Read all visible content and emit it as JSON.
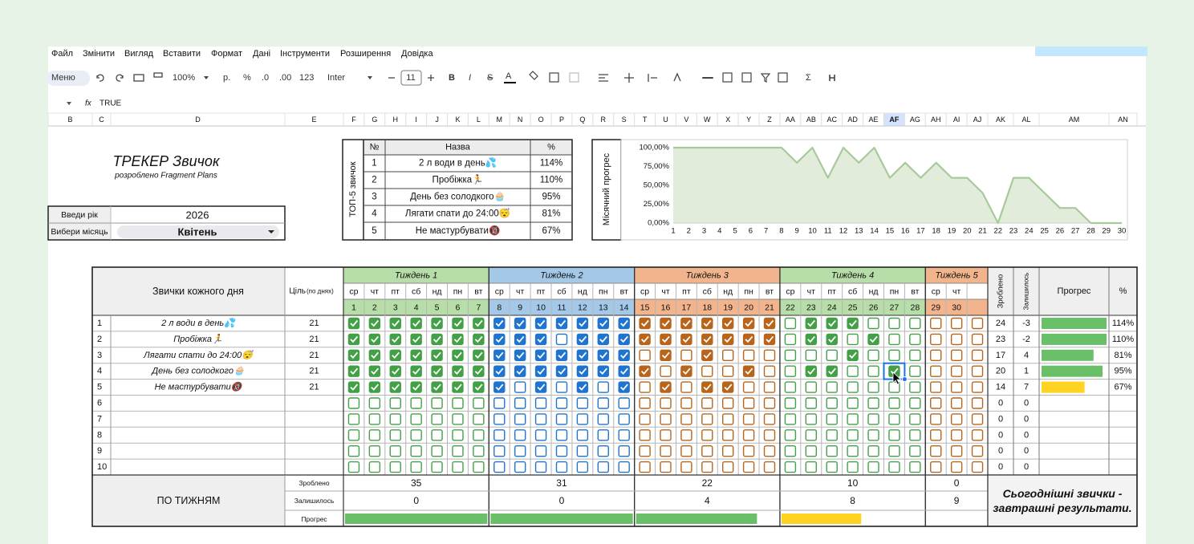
{
  "menu": [
    "Файл",
    "Змінити",
    "Вигляд",
    "Вставити",
    "Формат",
    "Дані",
    "Інструменти",
    "Розширення",
    "Довідка"
  ],
  "toolbar": {
    "menu": "Меню",
    "zoom": "100%",
    "currency": "р.",
    "percent": "%",
    "decrease_decimals": ".0",
    "increase_decimals": ".00",
    "number_format": "123",
    "font": "Inter",
    "font_size": "11",
    "bold": "B",
    "italic": "I",
    "strike": "S",
    "text_color": "A",
    "sum": "Σ"
  },
  "formula": {
    "function_label": "fx",
    "content": "TRUE"
  },
  "columns": [
    "B",
    "C",
    "D",
    "E",
    "F",
    "G",
    "H",
    "I",
    "J",
    "K",
    "L",
    "M",
    "N",
    "O",
    "P",
    "Q",
    "R",
    "S",
    "T",
    "U",
    "V",
    "W",
    "X",
    "Y",
    "Z",
    "AA",
    "AB",
    "AC",
    "AD",
    "AE",
    "AF",
    "AG",
    "AH",
    "AI",
    "AJ",
    "AK",
    "AL",
    "AM",
    "AN"
  ],
  "tracker": {
    "title": "ТРЕКЕР Звичок",
    "subtitle": "розроблено Fragment Plans",
    "year_label": "Введи рік",
    "year": "2026",
    "month_label": "Вибери місяць",
    "month": "Квітень"
  },
  "top5": {
    "side_label": "ТОП-5 звичок",
    "headers": [
      "№",
      "Назва",
      "%"
    ],
    "rows": [
      [
        1,
        "2 л води в день💦",
        "114%"
      ],
      [
        2,
        "Пробіжка🏃",
        "110%"
      ],
      [
        3,
        "День без солодкого🧁",
        "95%"
      ],
      [
        4,
        "Лягати спати до 24:00😴",
        "81%"
      ],
      [
        5,
        "Не мастурбувати🔞",
        "67%"
      ]
    ]
  },
  "chart_data": {
    "type": "line",
    "y_label": "Місячний прогрес",
    "x": [
      1,
      2,
      3,
      4,
      5,
      6,
      7,
      8,
      9,
      10,
      11,
      12,
      13,
      14,
      15,
      16,
      17,
      18,
      19,
      20,
      21,
      22,
      23,
      24,
      25,
      26,
      27,
      28,
      29,
      30
    ],
    "values": [
      100,
      100,
      100,
      100,
      100,
      100,
      100,
      100,
      80,
      100,
      60,
      100,
      80,
      100,
      60,
      80,
      60,
      80,
      60,
      60,
      40,
      0,
      60,
      60,
      40,
      20,
      20,
      0,
      0,
      0
    ],
    "xlim": [
      1,
      30
    ],
    "ylim": [
      0,
      100
    ],
    "yticks": [
      {
        "value": 0,
        "label": "0,00%"
      },
      {
        "value": 25,
        "label": "25,00%"
      },
      {
        "value": 50,
        "label": "50,00%"
      },
      {
        "value": 75,
        "label": "75,00%"
      },
      {
        "value": 100,
        "label": "100,00%"
      }
    ],
    "color": "#a8c99b",
    "fill_color": "#e1edda",
    "grid": false
  },
  "habits": {
    "header": "Звички кожного дня",
    "goal_header": "Ціль",
    "goal_note": "(по днях)",
    "done_header": "Зроблено",
    "left_header": "Залишилось",
    "progress_header": "Прогрес",
    "percent_header": "%",
    "weeks": [
      {
        "name": "Тиждень 1",
        "color": "#43a047",
        "header_color": "#b7dda8",
        "days": [
          {
            "weekday": "ср",
            "day": 1
          },
          {
            "weekday": "чт",
            "day": 2
          },
          {
            "weekday": "пт",
            "day": 3
          },
          {
            "weekday": "сб",
            "day": 4
          },
          {
            "weekday": "нд",
            "day": 5
          },
          {
            "weekday": "пн",
            "day": 6
          },
          {
            "weekday": "вт",
            "day": 7
          }
        ]
      },
      {
        "name": "Тиждень 2",
        "color": "#1f74d0",
        "header_color": "#a4c8e8",
        "days": [
          {
            "weekday": "ср",
            "day": 8
          },
          {
            "weekday": "чт",
            "day": 9
          },
          {
            "weekday": "пт",
            "day": 10
          },
          {
            "weekday": "сб",
            "day": 11
          },
          {
            "weekday": "нд",
            "day": 12
          },
          {
            "weekday": "пн",
            "day": 13
          },
          {
            "weekday": "вт",
            "day": 14
          }
        ]
      },
      {
        "name": "Тиждень 3",
        "color": "#b8651b",
        "header_color": "#f2b48c",
        "days": [
          {
            "weekday": "ср",
            "day": 15
          },
          {
            "weekday": "чт",
            "day": 16
          },
          {
            "weekday": "пт",
            "day": 17
          },
          {
            "weekday": "сб",
            "day": 18
          },
          {
            "weekday": "нд",
            "day": 19
          },
          {
            "weekday": "пн",
            "day": 20
          },
          {
            "weekday": "вт",
            "day": 21
          }
        ]
      },
      {
        "name": "Тиждень 4",
        "color": "#43a047",
        "header_color": "#b7dda8",
        "days": [
          {
            "weekday": "ср",
            "day": 22
          },
          {
            "weekday": "чт",
            "day": 23
          },
          {
            "weekday": "пт",
            "day": 24
          },
          {
            "weekday": "сб",
            "day": 25
          },
          {
            "weekday": "нд",
            "day": 26
          },
          {
            "weekday": "пн",
            "day": 27
          },
          {
            "weekday": "вт",
            "day": 28
          }
        ]
      },
      {
        "name": "Тиждень 5",
        "color": "#b8651b",
        "header_color": "#f2b48c",
        "days": [
          {
            "weekday": "ср",
            "day": 29
          },
          {
            "weekday": "чт",
            "day": 30
          },
          {
            "weekday": null,
            "day": null
          }
        ]
      }
    ],
    "rows": [
      {
        "num": 1,
        "name": "2 л води в день💦",
        "goal": 21,
        "checks": [
          1,
          1,
          1,
          1,
          1,
          1,
          1,
          1,
          1,
          1,
          1,
          1,
          1,
          1,
          1,
          1,
          1,
          1,
          1,
          1,
          1,
          0,
          1,
          1,
          1,
          0,
          0,
          0,
          0,
          0,
          0
        ],
        "done": 24,
        "left": -3,
        "progress": 114,
        "progress_label": "114%",
        "bar_color": "#6abf69"
      },
      {
        "num": 2,
        "name": "Пробіжка🏃",
        "goal": 21,
        "checks": [
          1,
          1,
          1,
          1,
          1,
          1,
          1,
          1,
          1,
          1,
          0,
          1,
          1,
          1,
          1,
          1,
          1,
          1,
          1,
          1,
          1,
          0,
          1,
          1,
          0,
          1,
          0,
          0,
          0,
          0,
          0
        ],
        "done": 23,
        "left": -2,
        "progress": 110,
        "progress_label": "110%",
        "bar_color": "#6abf69"
      },
      {
        "num": 3,
        "name": "Лягати спати до 24:00😴",
        "goal": 21,
        "checks": [
          1,
          1,
          1,
          1,
          1,
          1,
          1,
          1,
          1,
          1,
          1,
          1,
          1,
          1,
          0,
          1,
          0,
          1,
          0,
          0,
          0,
          0,
          0,
          0,
          1,
          0,
          0,
          0,
          0,
          0,
          0
        ],
        "done": 17,
        "left": 4,
        "progress": 81,
        "progress_label": "81%",
        "bar_color": "#6abf69"
      },
      {
        "num": 4,
        "name": "День без солодкого🧁",
        "goal": 21,
        "checks": [
          1,
          1,
          1,
          1,
          1,
          1,
          1,
          1,
          1,
          1,
          1,
          1,
          1,
          1,
          1,
          0,
          1,
          0,
          0,
          1,
          0,
          0,
          1,
          1,
          0,
          0,
          1,
          0,
          0,
          0,
          0
        ],
        "done": 20,
        "left": 1,
        "progress": 95,
        "progress_label": "95%",
        "bar_color": "#6abf69"
      },
      {
        "num": 5,
        "name": "Не мастурбувати🔞",
        "goal": 21,
        "checks": [
          1,
          1,
          1,
          1,
          1,
          1,
          1,
          1,
          0,
          1,
          0,
          1,
          0,
          1,
          0,
          1,
          0,
          1,
          1,
          0,
          0,
          0,
          0,
          0,
          0,
          0,
          0,
          0,
          0,
          0,
          0
        ],
        "done": 14,
        "left": 7,
        "progress": 67,
        "progress_label": "67%",
        "bar_color": "#ffd320"
      },
      {
        "num": 6,
        "checks": [
          0,
          0,
          0,
          0,
          0,
          0,
          0,
          0,
          0,
          0,
          0,
          0,
          0,
          0,
          0,
          0,
          0,
          0,
          0,
          0,
          0,
          0,
          0,
          0,
          0,
          0,
          0,
          0,
          0,
          0,
          0
        ],
        "done": 0,
        "left": 0
      },
      {
        "num": 7,
        "checks": [
          0,
          0,
          0,
          0,
          0,
          0,
          0,
          0,
          0,
          0,
          0,
          0,
          0,
          0,
          0,
          0,
          0,
          0,
          0,
          0,
          0,
          0,
          0,
          0,
          0,
          0,
          0,
          0,
          0,
          0,
          0
        ],
        "done": 0,
        "left": 0
      },
      {
        "num": 8,
        "checks": [
          0,
          0,
          0,
          0,
          0,
          0,
          0,
          0,
          0,
          0,
          0,
          0,
          0,
          0,
          0,
          0,
          0,
          0,
          0,
          0,
          0,
          0,
          0,
          0,
          0,
          0,
          0,
          0,
          0,
          0,
          0
        ],
        "done": 0,
        "left": 0
      },
      {
        "num": 9,
        "checks": [
          0,
          0,
          0,
          0,
          0,
          0,
          0,
          0,
          0,
          0,
          0,
          0,
          0,
          0,
          0,
          0,
          0,
          0,
          0,
          0,
          0,
          0,
          0,
          0,
          0,
          0,
          0,
          0,
          0,
          0,
          0
        ],
        "done": 0,
        "left": 0
      },
      {
        "num": 10,
        "checks": [
          0,
          0,
          0,
          0,
          0,
          0,
          0,
          0,
          0,
          0,
          0,
          0,
          0,
          0,
          0,
          0,
          0,
          0,
          0,
          0,
          0,
          0,
          0,
          0,
          0,
          0,
          0,
          0,
          0,
          0,
          0
        ],
        "done": 0,
        "left": 0
      }
    ]
  },
  "summary": {
    "title": "ПО ТИЖНЯМ",
    "done_label": "Зроблено",
    "left_label": "Залишилось",
    "progress_label": "Прогрес",
    "done": [
      35,
      31,
      22,
      10,
      0
    ],
    "left": [
      0,
      0,
      4,
      8,
      9
    ],
    "progress": [
      100,
      100,
      85,
      56,
      0
    ],
    "bar_colors": [
      "#6abf69",
      "#6abf69",
      "#6abf69",
      "#ffd320",
      "#ffd320"
    ]
  },
  "motto": "Сьогоднішні звички - завтрашні результати."
}
